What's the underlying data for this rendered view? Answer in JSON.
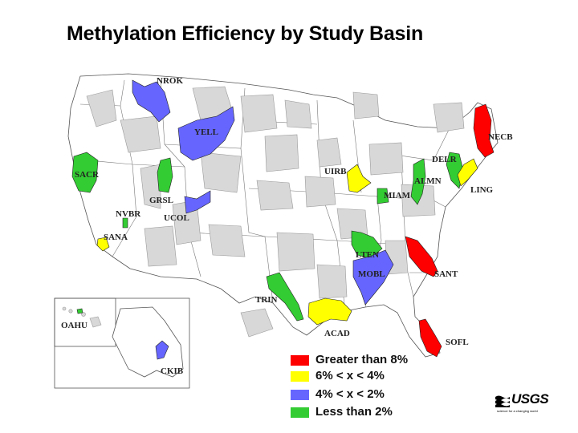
{
  "title": "Methylation Efficiency by Study Basin",
  "colors": {
    "greater_than_8": "#ff0000",
    "6_to_4": "#ffff00",
    "4_to_2": "#6666ff",
    "less_than_2": "#33cc33",
    "other_basins": "#d8d8d8"
  },
  "basins": [
    {
      "code": "NROK",
      "category": "4_to_2"
    },
    {
      "code": "YELL",
      "category": "4_to_2"
    },
    {
      "code": "NECB",
      "category": "greater_than_8"
    },
    {
      "code": "DELR",
      "category": "less_than_2"
    },
    {
      "code": "SACR",
      "category": "less_than_2"
    },
    {
      "code": "UIRB",
      "category": "6_to_4"
    },
    {
      "code": "ALMN",
      "category": "less_than_2"
    },
    {
      "code": "LING",
      "category": "6_to_4"
    },
    {
      "code": "GRSL",
      "category": "less_than_2"
    },
    {
      "code": "MIAM",
      "category": "less_than_2"
    },
    {
      "code": "NVBR",
      "category": "less_than_2"
    },
    {
      "code": "UCOL",
      "category": "4_to_2"
    },
    {
      "code": "SANA",
      "category": "6_to_4"
    },
    {
      "code": "LTEN",
      "category": "less_than_2"
    },
    {
      "code": "MOBL",
      "category": "4_to_2"
    },
    {
      "code": "SANT",
      "category": "greater_than_8"
    },
    {
      "code": "TRIN",
      "category": "less_than_2"
    },
    {
      "code": "OAHU",
      "category": "less_than_2"
    },
    {
      "code": "ACAD",
      "category": "6_to_4"
    },
    {
      "code": "SOFL",
      "category": "greater_than_8"
    },
    {
      "code": "CKIB",
      "category": "4_to_2"
    }
  ],
  "legend": [
    {
      "label": "Greater than 8%",
      "color": "#ff0000"
    },
    {
      "label": "6% < x < 4%",
      "color": "#ffff00"
    },
    {
      "label": " 4% < x < 2%",
      "color": "#6666ff"
    },
    {
      "label": "Less than 2%",
      "color": "#33cc33"
    }
  ],
  "logo": {
    "name": "USGS",
    "tagline": "science for a changing world"
  }
}
